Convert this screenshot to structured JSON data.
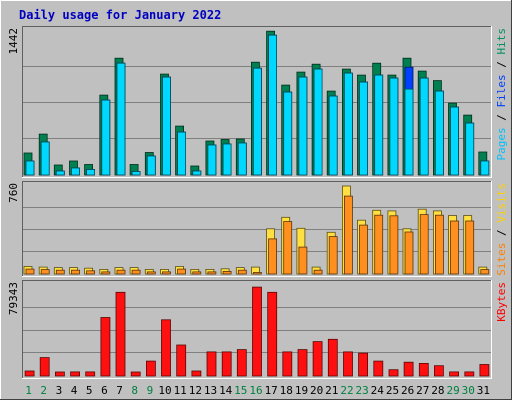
{
  "chart_data": {
    "type": "bar",
    "title": "Daily usage for January 2022",
    "categories": [
      "1",
      "2",
      "3",
      "4",
      "5",
      "6",
      "7",
      "8",
      "9",
      "10",
      "11",
      "12",
      "13",
      "14",
      "15",
      "16",
      "17",
      "18",
      "19",
      "20",
      "21",
      "22",
      "23",
      "24",
      "25",
      "26",
      "27",
      "28",
      "29",
      "30",
      "31"
    ],
    "weekend_days": [
      "1",
      "2",
      "8",
      "9",
      "15",
      "16",
      "22",
      "23",
      "29",
      "30"
    ],
    "panels": [
      {
        "id": "hits-files-pages",
        "ymax_label": "1442",
        "ymax": 1442,
        "legend": [
          "Pages",
          "Files",
          "Hits"
        ],
        "legend_colors": [
          "#00c0ff",
          "#0040ff",
          "#009060"
        ],
        "series": [
          {
            "name": "Hits",
            "color": "#008050",
            "values": [
              220,
              410,
              100,
              140,
              105,
              800,
              1170,
              105,
              225,
              1010,
              490,
              90,
              340,
              355,
              360,
              1130,
              1440,
              900,
              1030,
              1110,
              840,
              1060,
              1000,
              1120,
              1000,
              1170,
              1040,
              945,
              720,
              600,
              230
            ]
          },
          {
            "name": "Files",
            "color": "#0040ff",
            "values": [
              160,
              350,
              60,
              90,
              75,
              770,
              1140,
              55,
              210,
              1000,
              450,
              60,
              320,
              330,
              340,
              1090,
              1420,
              850,
              1000,
              1080,
              810,
              1040,
              950,
              1020,
              990,
              1100,
              990,
              860,
              700,
              540,
              160
            ]
          },
          {
            "name": "Pages",
            "color": "#00d8ff",
            "values": [
              160,
              350,
              60,
              90,
              75,
              770,
              1140,
              55,
              210,
              1000,
              450,
              60,
              320,
              330,
              340,
              1090,
              1420,
              850,
              1000,
              1080,
              810,
              1040,
              950,
              1020,
              990,
              880,
              990,
              860,
              700,
              540,
              160
            ]
          }
        ]
      },
      {
        "id": "visits-sites",
        "ymax_label": "760",
        "ymax": 760,
        "legend": [
          "Sites",
          "Visits"
        ],
        "legend_colors": [
          "#ff8000",
          "#ffd000"
        ],
        "series": [
          {
            "name": "Visits",
            "color": "#ffe040",
            "values": [
              65,
              60,
              55,
              55,
              50,
              40,
              55,
              55,
              40,
              40,
              65,
              40,
              40,
              45,
              55,
              60,
              390,
              490,
              395,
              60,
              360,
              760,
              465,
              550,
              545,
              390,
              560,
              545,
              505,
              505,
              60
            ]
          },
          {
            "name": "Sites",
            "color": "#ff9020",
            "values": [
              60,
              55,
              50,
              50,
              45,
              35,
              50,
              50,
              35,
              35,
              60,
              35,
              35,
              40,
              50,
              30,
              320,
              470,
              250,
              50,
              340,
              690,
              440,
              525,
              520,
              380,
              530,
              525,
              475,
              475,
              55
            ]
          }
        ]
      },
      {
        "id": "kbytes",
        "ymax_label": "79343",
        "ymax": 79343,
        "legend": [
          "KBytes"
        ],
        "legend_colors": [
          "#ff0000"
        ],
        "series": [
          {
            "name": "KBytes",
            "color": "#ff1010",
            "values": [
              4400,
              16000,
              3500,
              3600,
              3600,
              51000,
              73000,
              3500,
              13000,
              49000,
              27000,
              4400,
              21000,
              21000,
              23000,
              77500,
              73000,
              21000,
              23000,
              30000,
              32000,
              21000,
              20000,
              13000,
              5500,
              12000,
              11000,
              9000,
              3600,
              3600,
              10000
            ]
          }
        ]
      }
    ]
  }
}
